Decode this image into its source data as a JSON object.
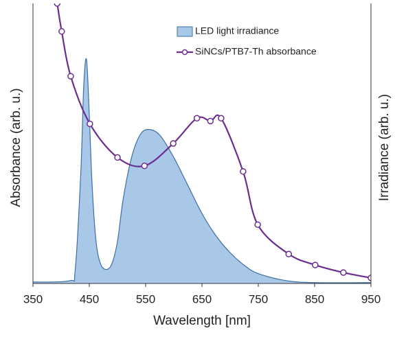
{
  "chart_data": {
    "type": "combo",
    "x_label": "Wavelength [nm]",
    "y_label": "Absorbance  (arb. u.)",
    "y2_label": "Irradiance (arb. u.)",
    "xlim": [
      350,
      950
    ],
    "xticks": [
      350,
      450,
      550,
      650,
      750,
      850,
      950
    ],
    "ylim": [
      0,
      1
    ],
    "y2lim": [
      0,
      1
    ],
    "series": [
      {
        "name": "LED light irradiance",
        "type": "area",
        "axis": "y2",
        "color": "#a9c8e8",
        "edge_color": "#3b6ea5",
        "x": [
          350,
          415,
          425,
          435,
          440,
          445,
          450,
          455,
          462,
          470,
          480,
          490,
          500,
          510,
          525,
          540,
          555,
          575,
          600,
          625,
          650,
          675,
          700,
          725,
          750,
          800,
          850,
          950
        ],
        "values": [
          0.005,
          0.01,
          0.05,
          0.4,
          0.7,
          0.8,
          0.6,
          0.35,
          0.15,
          0.07,
          0.05,
          0.07,
          0.15,
          0.3,
          0.45,
          0.53,
          0.55,
          0.53,
          0.45,
          0.35,
          0.25,
          0.17,
          0.11,
          0.065,
          0.035,
          0.01,
          0.003,
          0.003
        ]
      },
      {
        "name": "SiNCs/PTB7-Th absorbance",
        "type": "line",
        "color": "#6b2e8f",
        "x": [
          393,
          401,
          417,
          451,
          500,
          548,
          599,
          641,
          665,
          684,
          723,
          749,
          804,
          851,
          901,
          950
        ],
        "values": [
          1.0,
          0.9,
          0.74,
          0.57,
          0.45,
          0.42,
          0.5,
          0.59,
          0.58,
          0.59,
          0.4,
          0.21,
          0.105,
          0.066,
          0.039,
          0.02
        ]
      }
    ]
  }
}
